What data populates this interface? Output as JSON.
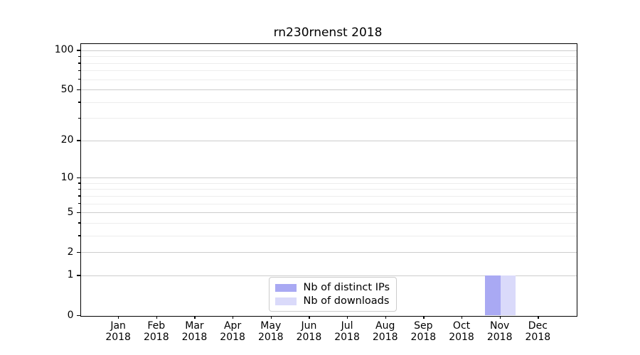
{
  "title": "rn230rnenst 2018",
  "colors": {
    "distinct_ips": "#a9a9f3",
    "downloads": "#dadafa",
    "grid_major": "#cccccc",
    "grid_minor": "#ededed",
    "axis": "#000000",
    "background": "#ffffff"
  },
  "legend": {
    "items": [
      {
        "label": "Nb of distinct IPs",
        "color_key": "distinct_ips"
      },
      {
        "label": "Nb of downloads",
        "color_key": "downloads"
      }
    ]
  },
  "x_axis": {
    "month_labels": [
      "Jan",
      "Feb",
      "Mar",
      "Apr",
      "May",
      "Jun",
      "Jul",
      "Aug",
      "Sep",
      "Oct",
      "Nov",
      "Dec"
    ],
    "year_label": "2018"
  },
  "y_axis": {
    "major_ticks": [
      0,
      1,
      2,
      5,
      10,
      20,
      50,
      100
    ],
    "minor_ticks": [
      3,
      4,
      6,
      7,
      8,
      9,
      30,
      40,
      60,
      70,
      80,
      90
    ]
  },
  "chart_data": {
    "type": "bar",
    "title": "rn230rnenst 2018",
    "categories": [
      "Jan 2018",
      "Feb 2018",
      "Mar 2018",
      "Apr 2018",
      "May 2018",
      "Jun 2018",
      "Jul 2018",
      "Aug 2018",
      "Sep 2018",
      "Oct 2018",
      "Nov 2018",
      "Dec 2018"
    ],
    "series": [
      {
        "name": "Nb of distinct IPs",
        "color": "#a9a9f3",
        "values": [
          0,
          0,
          0,
          0,
          0,
          0,
          0,
          0,
          0,
          0,
          1,
          0
        ]
      },
      {
        "name": "Nb of downloads",
        "color": "#dadafa",
        "values": [
          0,
          0,
          0,
          0,
          0,
          0,
          0,
          0,
          0,
          0,
          1,
          0
        ]
      }
    ],
    "xlabel": "",
    "ylabel": "",
    "yscale": "log1p",
    "y_major_ticks": [
      0,
      1,
      2,
      5,
      10,
      20,
      50,
      100
    ],
    "y_minor_ticks": [
      3,
      4,
      6,
      7,
      8,
      9,
      30,
      40,
      60,
      70,
      80,
      90
    ],
    "ylim": [
      0,
      112
    ],
    "grid": "horizontal",
    "legend_position": "lower center"
  }
}
